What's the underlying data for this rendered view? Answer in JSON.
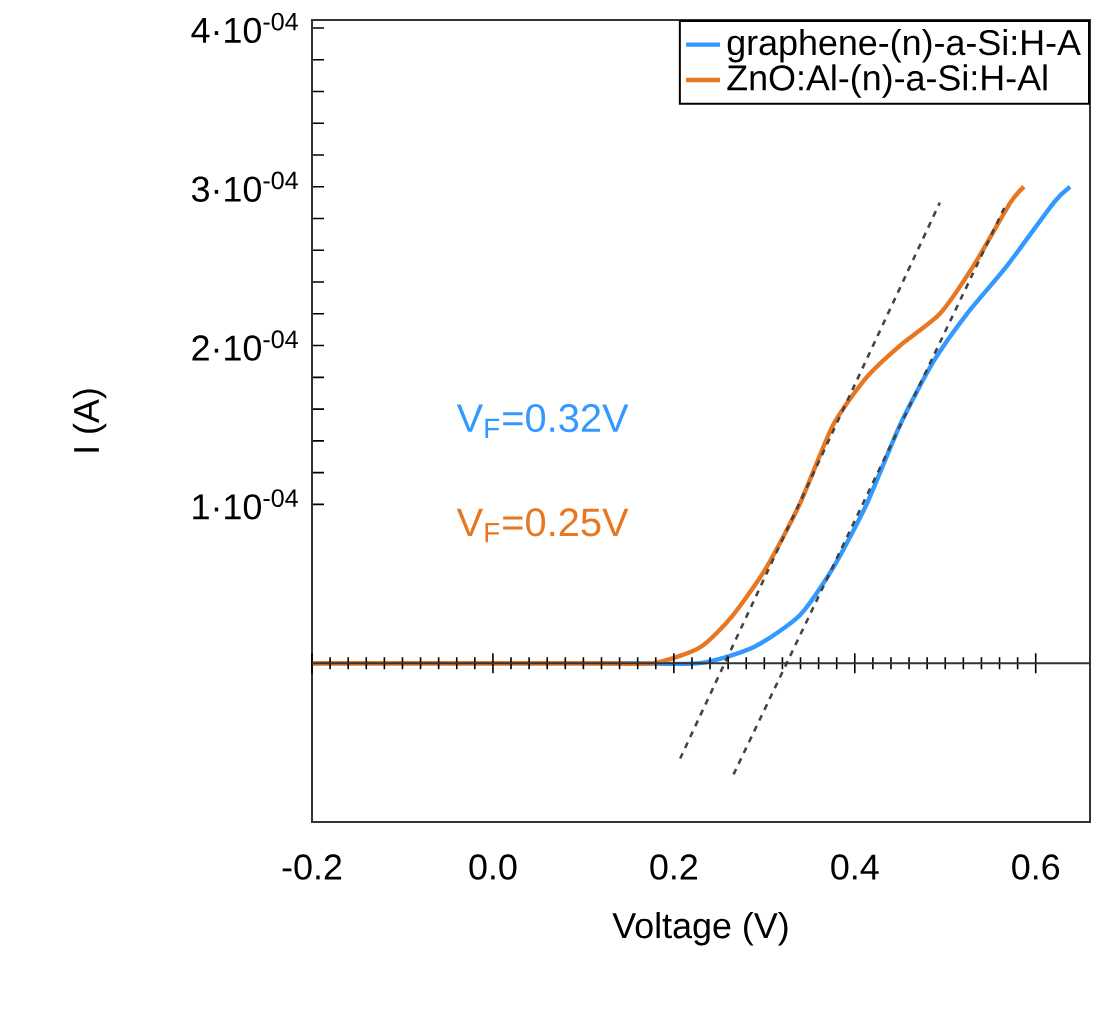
{
  "chart_data": {
    "type": "line",
    "xlabel": "Voltage (V)",
    "ylabel": "I (A)",
    "xlim": [
      -0.2,
      0.66
    ],
    "ylim": [
      -0.0001,
      0.000405
    ],
    "xticks": [
      -0.2,
      {
        "value": 0,
        "label": "0.0"
      },
      0.2,
      0.4,
      0.6
    ],
    "yticks": [
      {
        "value": 0.0001,
        "label": "1·10$^{-04}$"
      },
      {
        "value": 0.0002,
        "label": "2·10$^{-04}$"
      },
      {
        "value": 0.0003,
        "label": "3·10$^{-04}$"
      },
      {
        "value": 0.0004,
        "label": "4·10$^{-04}$"
      }
    ],
    "grid": false,
    "legend": "top right",
    "marker": "none",
    "line_style": "solid",
    "annotations": [
      "V$_{F}$=0.32V",
      "V$_{F}$=0.25V"
    ],
    "series": [
      {
        "name": "graphene-(n)-a-Si:H-A",
        "color": "#3399ff",
        "x": [
          -0.2,
          0.0,
          0.153,
          0.229,
          0.288,
          0.339,
          0.376,
          0.413,
          0.45,
          0.487,
          0.524,
          0.568,
          0.62,
          0.638
        ],
        "values": [
          0,
          0,
          0,
          0,
          1e-05,
          3e-05,
          6e-05,
          0.0001,
          0.00015,
          0.00019,
          0.00022,
          0.00025,
          0.00029,
          0.0003
        ]
      },
      {
        "name": "ZnO:Al-(n)-a-Si:H-Al",
        "color": "#e87722",
        "x": [
          -0.2,
          0.0,
          0.11,
          0.177,
          0.229,
          0.265,
          0.302,
          0.339,
          0.376,
          0.413,
          0.45,
          0.494,
          0.531,
          0.572,
          0.587
        ],
        "values": [
          0,
          0,
          0,
          0,
          1e-05,
          3e-05,
          6e-05,
          0.0001,
          0.00015,
          0.00018,
          0.0002,
          0.00022,
          0.00025,
          0.00029,
          0.0003
        ]
      },
      {
        "type": "line",
        "line_style": "dashed",
        "color": "#444444",
        "x": [
          0.266,
          0.568
        ],
        "values": [
          -7e-05,
          0.00029
        ]
      },
      {
        "type": "line",
        "line_style": "dashed",
        "color": "#444444",
        "x": [
          0.207,
          0.494
        ],
        "values": [
          -6e-05,
          0.00029
        ]
      }
    ]
  }
}
